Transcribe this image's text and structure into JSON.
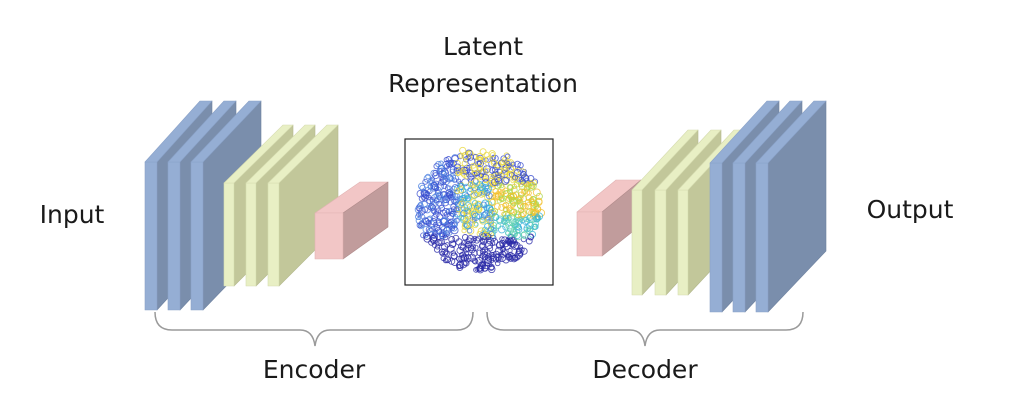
{
  "labels": {
    "input": "Input",
    "output": "Output",
    "latent_line1": "Latent",
    "latent_line2": "Representation",
    "encoder": "Encoder",
    "decoder": "Decoder"
  },
  "colors": {
    "blue_face": "#95aed4",
    "blue_side": "#7a8eac",
    "green_face": "#e8efc4",
    "green_side": "#c2c79a",
    "pink_face": "#f2c6c6",
    "pink_side": "#c19c9c",
    "bracket": "#9a9a9a"
  }
}
